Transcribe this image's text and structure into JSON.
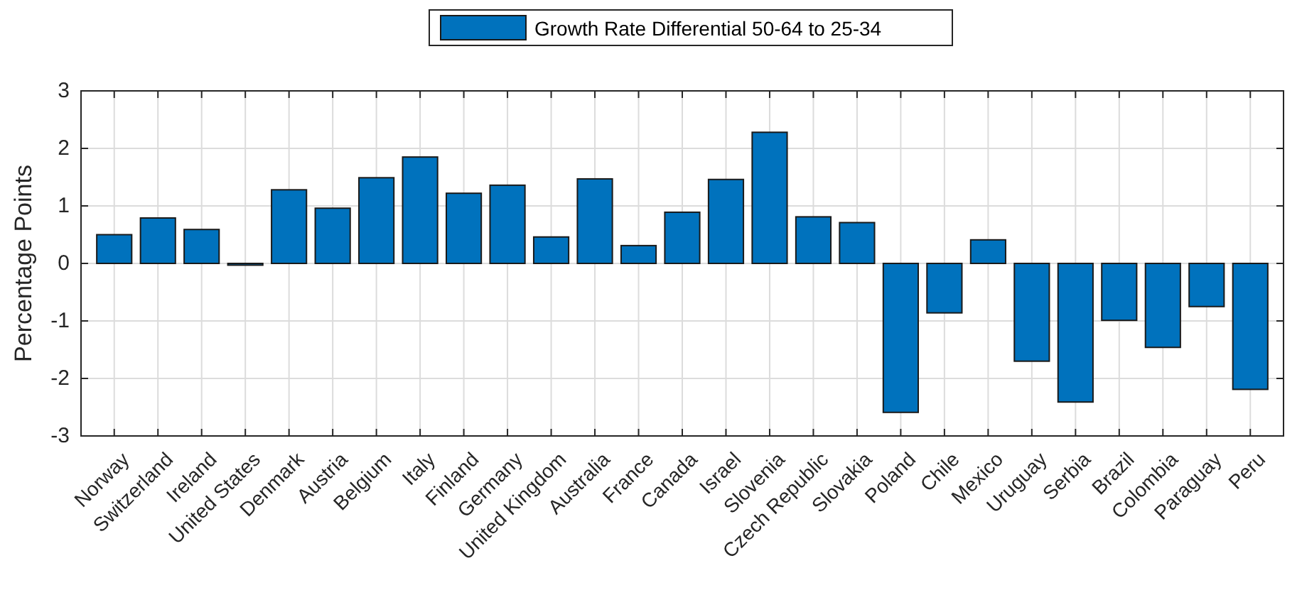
{
  "chart_data": {
    "type": "bar",
    "categories": [
      "Norway",
      "Switzerland",
      "Ireland",
      "United States",
      "Denmark",
      "Austria",
      "Belgium",
      "Italy",
      "Finland",
      "Germany",
      "United Kingdom",
      "Australia",
      "France",
      "Canada",
      "Israel",
      "Slovenia",
      "Czech Republic",
      "Slovakia",
      "Poland",
      "Chile",
      "Mexico",
      "Uruguay",
      "Serbia",
      "Brazil",
      "Colombia",
      "Paraguay",
      "Peru"
    ],
    "series": [
      {
        "name": "Growth Rate Differential 50-64 to 25-34",
        "color": "#0072bd",
        "values": [
          0.5,
          0.79,
          0.59,
          -0.03,
          1.28,
          0.96,
          1.49,
          1.85,
          1.22,
          1.36,
          0.46,
          1.47,
          0.31,
          0.89,
          1.46,
          2.28,
          0.81,
          0.71,
          -2.59,
          -0.86,
          0.41,
          -1.7,
          -2.41,
          -0.99,
          -1.46,
          -0.75,
          -2.19
        ]
      }
    ],
    "ylabel": "Percentage Points",
    "ylim": [
      -3,
      3
    ],
    "yticks": [
      -3,
      -2,
      -1,
      0,
      1,
      2,
      3
    ],
    "grid": true,
    "legend": "top"
  }
}
